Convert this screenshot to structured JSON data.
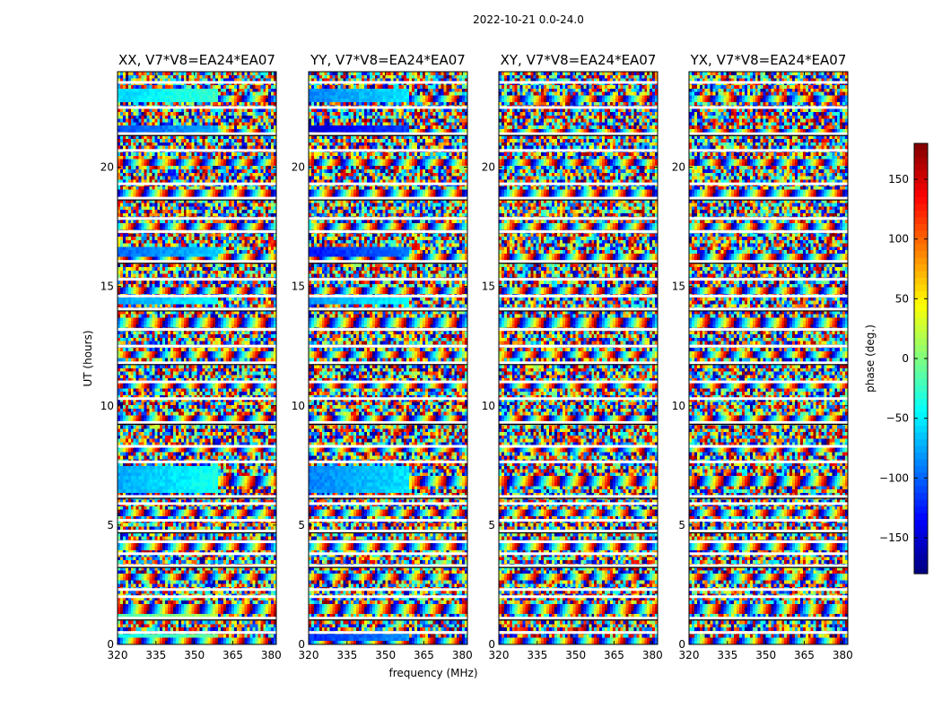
{
  "chart_data": {
    "type": "heatmap",
    "title": "2022-10-21 0.0-24.0",
    "xlabel": "frequency (MHz)",
    "ylabel": "UT (hours)",
    "xlim": [
      320,
      382
    ],
    "ylim": [
      0,
      24
    ],
    "xticks": [
      320,
      335,
      350,
      365,
      380
    ],
    "yticks": [
      0,
      5,
      10,
      15,
      20
    ],
    "colorbar": {
      "label": "phase (deg.)",
      "range": [
        -180,
        180
      ],
      "ticks": [
        -150,
        -100,
        -50,
        0,
        50,
        100,
        150
      ],
      "tick_labels": [
        "−150",
        "−100",
        "−50",
        "0",
        "50",
        "100",
        "150"
      ],
      "colormap": "jet"
    },
    "panels": [
      {
        "title": "XX, V7*V8=EA24*EA07",
        "smooth_bands": [
          {
            "t0": 0.25,
            "t1": 0.45,
            "phase": -40
          },
          {
            "t0": 1.0,
            "t1": 1.3,
            "phase": -20
          },
          {
            "t0": 6.3,
            "t1": 7.5,
            "phase": -75
          },
          {
            "t0": 14.3,
            "t1": 14.5,
            "phase": -80
          },
          {
            "t0": 16.2,
            "t1": 16.7,
            "phase": -100
          },
          {
            "t0": 21.5,
            "t1": 21.7,
            "phase": -110
          },
          {
            "t0": 22.8,
            "t1": 23.3,
            "phase": -60
          }
        ]
      },
      {
        "title": "YY, V7*V8=EA24*EA07",
        "smooth_bands": [
          {
            "t0": 0.2,
            "t1": 0.45,
            "phase": -120
          },
          {
            "t0": 6.3,
            "t1": 7.5,
            "phase": -90
          },
          {
            "t0": 14.3,
            "t1": 14.5,
            "phase": -80
          },
          {
            "t0": 16.2,
            "t1": 16.7,
            "phase": -130
          },
          {
            "t0": 21.5,
            "t1": 21.7,
            "phase": -150
          },
          {
            "t0": 22.8,
            "t1": 23.3,
            "phase": -90
          }
        ]
      },
      {
        "title": "XY, V7*V8=EA24*EA07",
        "smooth_bands": []
      },
      {
        "title": "YX, V7*V8=EA24*EA07",
        "smooth_bands": []
      }
    ],
    "gaps_hours": [
      0.5,
      1.1,
      2.0,
      2.3,
      3.3,
      3.8,
      4.3,
      4.75,
      5.2,
      5.9,
      6.2,
      7.65,
      8.3,
      9.3,
      10.3,
      11.0,
      11.8,
      12.5,
      13.2,
      14.05,
      14.6,
      15.3,
      16.05,
      17.3,
      17.85,
      18.7,
      19.3,
      20.7,
      21.4,
      22.5,
      23.55
    ]
  }
}
